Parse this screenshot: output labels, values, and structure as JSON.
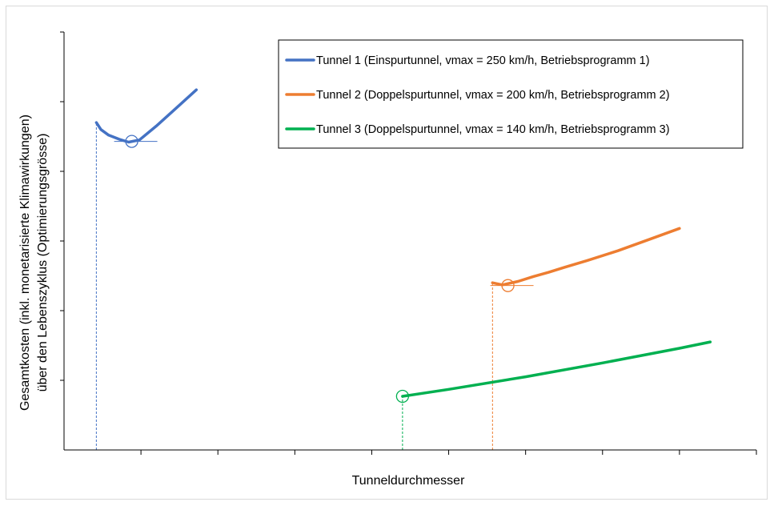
{
  "chart_data": {
    "type": "line",
    "xlabel": "Tunneldurchmesser",
    "ylabel": [
      "Gesamtkosten (inkl. monetarisierte Klimawirkungen)",
      "über den Lebenszyklus (Optimierungsgrösse)"
    ],
    "xlim": [
      0,
      9
    ],
    "ylim": [
      0,
      6
    ],
    "x_ticks": [
      1,
      2,
      3,
      4,
      5,
      6,
      7,
      8,
      9
    ],
    "y_ticks": [
      1,
      2,
      3,
      4,
      5,
      6
    ],
    "tick_labels_shown": false,
    "grid": false,
    "legend_position": "top-right",
    "series": [
      {
        "name": "Tunnel 1 (Einspurtunnel, vmax = 250 km/h, Betriebsprogramm 1)",
        "color": "#4472C4",
        "x": [
          0.42,
          0.48,
          0.58,
          0.72,
          0.84,
          0.98,
          1.2,
          1.45,
          1.72
        ],
        "y": [
          4.7,
          4.6,
          4.52,
          4.46,
          4.42,
          4.45,
          4.65,
          4.9,
          5.17
        ],
        "optimum": {
          "x": 0.88,
          "y": 4.43
        }
      },
      {
        "name": "Tunnel 2 (Doppelspurtunnel, vmax = 200 km/h, Betriebsprogramm 2)",
        "color": "#ED7D31",
        "x": [
          5.57,
          5.7,
          5.9,
          6.1,
          6.3,
          6.5,
          6.8,
          7.2,
          7.6,
          8.0
        ],
        "y": [
          2.4,
          2.37,
          2.42,
          2.49,
          2.55,
          2.62,
          2.72,
          2.86,
          3.02,
          3.18
        ],
        "optimum": {
          "x": 5.77,
          "y": 2.36
        }
      },
      {
        "name": "Tunnel 3 (Doppelspurtunnel, vmax = 140 km/h, Betriebsprogramm 3)",
        "color": "#00B050",
        "x": [
          4.4,
          5.0,
          6.0,
          7.0,
          8.0,
          8.4
        ],
        "y": [
          0.77,
          0.87,
          1.05,
          1.25,
          1.46,
          1.55
        ],
        "optimum": {
          "x": 4.4,
          "y": 0.77
        }
      }
    ],
    "reference_lines": [
      {
        "x": 0.42,
        "color": "#4472C4"
      },
      {
        "x": 5.57,
        "color": "#ED7D31"
      },
      {
        "x": 4.4,
        "color": "#00B050"
      }
    ]
  }
}
